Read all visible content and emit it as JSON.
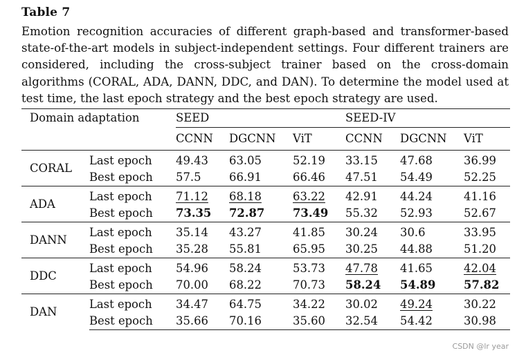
{
  "table_label": "Table 7",
  "caption": "Emotion recognition accuracies of different graph-based and transformer-based state-of-the-art models in subject-independent settings. Four different trainers are considered, including the cross-subject trainer based on the cross-domain algorithms (CORAL, ADA, DANN, DDC, and DAN). To determine the model used at test time, the last epoch strategy and the best epoch strategy are used.",
  "header": {
    "corner": "Domain adaptation",
    "dataset_1": "SEED",
    "dataset_2": "SEED-IV",
    "models": [
      "CCNN",
      "DGCNN",
      "ViT",
      "CCNN",
      "DGCNN",
      "ViT"
    ]
  },
  "groups": [
    {
      "name": "CORAL",
      "rows": [
        {
          "label": "Last epoch",
          "values": [
            "49.43",
            "63.05",
            "52.19",
            "33.15",
            "47.68",
            "36.99"
          ]
        },
        {
          "label": "Best epoch",
          "values": [
            "57.5",
            "66.91",
            "66.46",
            "47.51",
            "54.49",
            "52.25"
          ]
        }
      ]
    },
    {
      "name": "ADA",
      "rows": [
        {
          "label": "Last epoch",
          "values": [
            "71.12",
            "68.18",
            "63.22",
            "42.91",
            "44.24",
            "41.16"
          ]
        },
        {
          "label": "Best epoch",
          "values": [
            "73.35",
            "72.87",
            "73.49",
            "55.32",
            "52.93",
            "52.67"
          ]
        }
      ]
    },
    {
      "name": "DANN",
      "rows": [
        {
          "label": "Last epoch",
          "values": [
            "35.14",
            "43.27",
            "41.85",
            "30.24",
            "30.6",
            "33.95"
          ]
        },
        {
          "label": "Best epoch",
          "values": [
            "35.28",
            "55.81",
            "65.95",
            "30.25",
            "44.88",
            "51.20"
          ]
        }
      ]
    },
    {
      "name": "DDC",
      "rows": [
        {
          "label": "Last epoch",
          "values": [
            "54.96",
            "58.24",
            "53.73",
            "47.78",
            "41.65",
            "42.04"
          ]
        },
        {
          "label": "Best epoch",
          "values": [
            "70.00",
            "68.22",
            "70.73",
            "58.24",
            "54.89",
            "57.82"
          ]
        }
      ]
    },
    {
      "name": "DAN",
      "rows": [
        {
          "label": "Last epoch",
          "values": [
            "34.47",
            "64.75",
            "34.22",
            "30.02",
            "49.24",
            "30.22"
          ]
        },
        {
          "label": "Best epoch",
          "values": [
            "35.66",
            "70.16",
            "35.60",
            "32.54",
            "54.42",
            "30.98"
          ]
        }
      ]
    }
  ],
  "watermark": "CSDN @lr year"
}
